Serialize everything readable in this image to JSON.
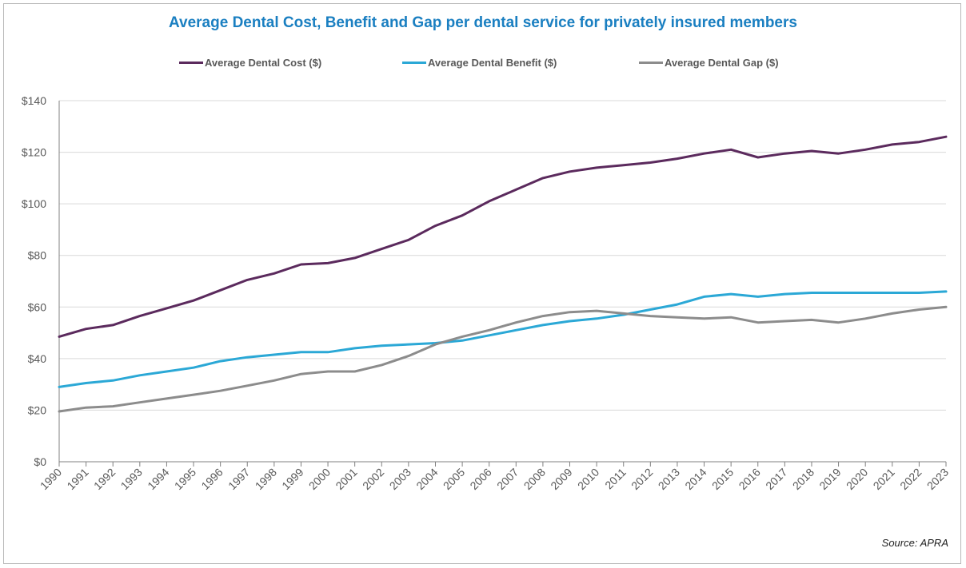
{
  "title": "Average Dental Cost, Benefit and Gap per dental service for privately insured members",
  "source": "Source: APRA",
  "colors": {
    "title": "#1a7fc1",
    "cost": "#5b2a5d",
    "benefit": "#2ba8d6",
    "gap": "#8c8c8c",
    "grid": "#d9d9d9"
  },
  "chart_data": {
    "type": "line",
    "title": "Average Dental Cost, Benefit and Gap per dental service for privately insured members",
    "xlabel": "",
    "ylabel": "",
    "ylim": [
      0,
      140
    ],
    "yticks": [
      "$0",
      "$20",
      "$40",
      "$60",
      "$80",
      "$100",
      "$120",
      "$140"
    ],
    "grid": true,
    "legend_position": "top-center",
    "x": [
      "1990",
      "1991",
      "1992",
      "1993",
      "1994",
      "1995",
      "1996",
      "1997",
      "1998",
      "1999",
      "2000",
      "2001",
      "2002",
      "2003",
      "2004",
      "2005",
      "2006",
      "2007",
      "2008",
      "2009",
      "2010",
      "2011",
      "2012",
      "2013",
      "2014",
      "2015",
      "2016",
      "2017",
      "2018",
      "2019",
      "2020",
      "2021",
      "2022",
      "2023"
    ],
    "series": [
      {
        "name": "Average Dental Cost ($)",
        "values": [
          48.5,
          51.5,
          53,
          56.5,
          59.5,
          62.5,
          66.5,
          70.5,
          73,
          76.5,
          77,
          79,
          82.5,
          86,
          91.5,
          95.5,
          101,
          105.5,
          110,
          112.5,
          114,
          115,
          116,
          117.5,
          119.5,
          121,
          118,
          119.5,
          120.5,
          119.5,
          121,
          123,
          124,
          126
        ]
      },
      {
        "name": "Average Dental Benefit ($)",
        "values": [
          29,
          30.5,
          31.5,
          33.5,
          35,
          36.5,
          39,
          40.5,
          41.5,
          42.5,
          42.5,
          44,
          45,
          45.5,
          46,
          47,
          49,
          51,
          53,
          54.5,
          55.5,
          57,
          59,
          61,
          64,
          65,
          64,
          65,
          65.5,
          65.5,
          65.5,
          65.5,
          65.5,
          66
        ]
      },
      {
        "name": "Average Dental Gap ($)",
        "values": [
          19.5,
          21,
          21.5,
          23,
          24.5,
          26,
          27.5,
          29.5,
          31.5,
          34,
          35,
          35,
          37.5,
          41,
          45.5,
          48.5,
          51,
          54,
          56.5,
          58,
          58.5,
          57.5,
          56.5,
          56,
          55.5,
          56,
          54,
          54.5,
          55,
          54,
          55.5,
          57.5,
          59,
          60
        ]
      }
    ]
  }
}
